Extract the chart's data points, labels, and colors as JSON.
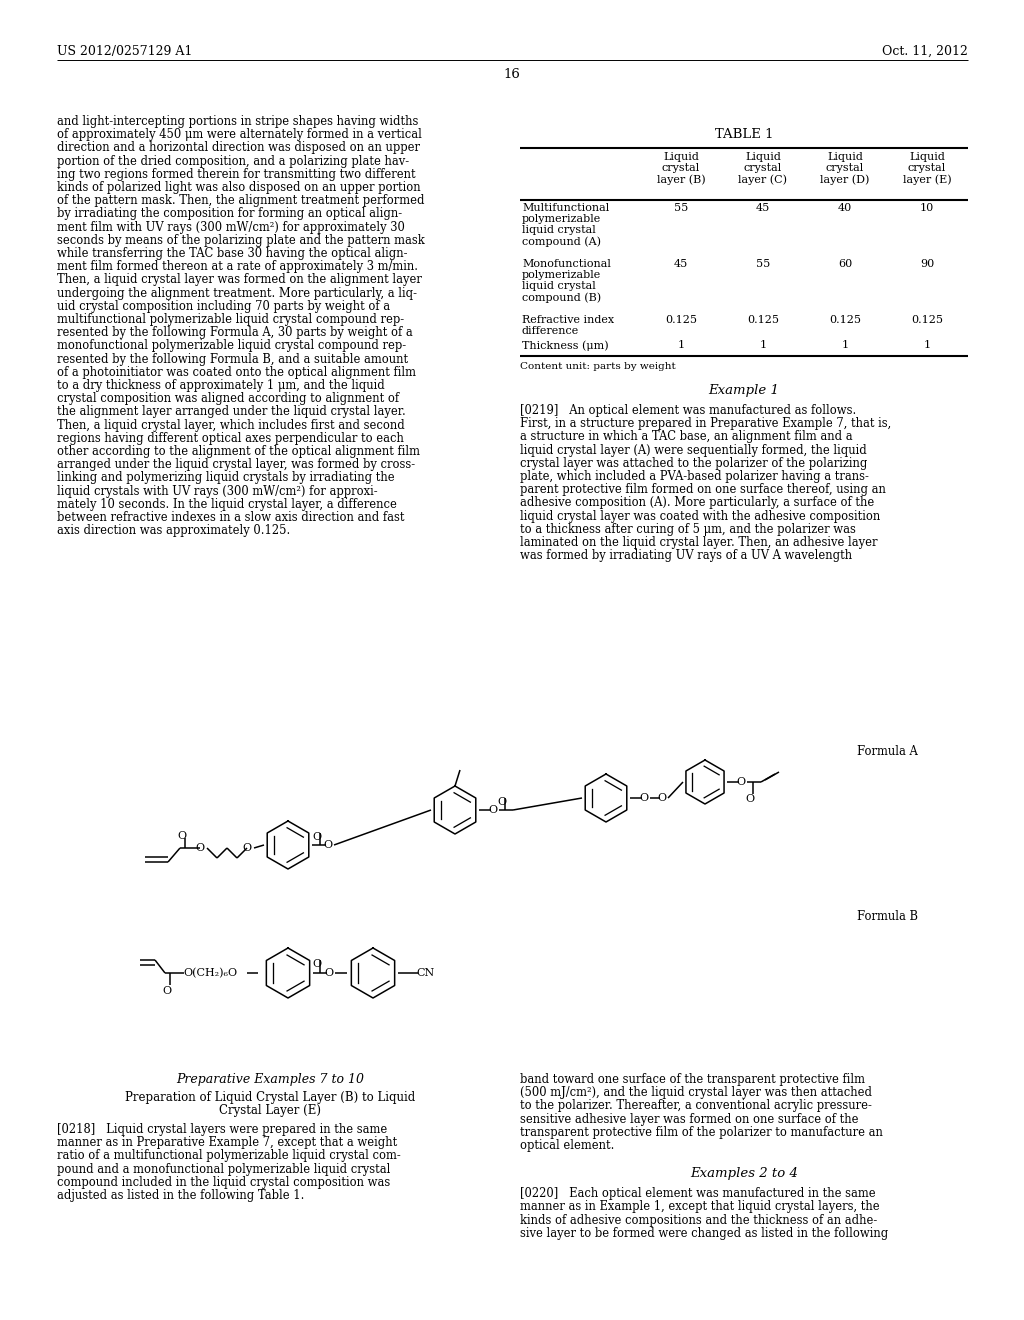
{
  "page_number": "16",
  "patent_number": "US 2012/0257129 A1",
  "patent_date": "Oct. 11, 2012",
  "background_color": "#ffffff",
  "left_col_lines": [
    "and light-intercepting portions in stripe shapes having widths",
    "of approximately 450 μm were alternately formed in a vertical",
    "direction and a horizontal direction was disposed on an upper",
    "portion of the dried composition, and a polarizing plate hav-",
    "ing two regions formed therein for transmitting two different",
    "kinds of polarized light was also disposed on an upper portion",
    "of the pattern mask. Then, the alignment treatment performed",
    "by irradiating the composition for forming an optical align-",
    "ment film with UV rays (300 mW/cm²) for approximately 30",
    "seconds by means of the polarizing plate and the pattern mask",
    "while transferring the TAC base 30 having the optical align-",
    "ment film formed thereon at a rate of approximately 3 m/min.",
    "Then, a liquid crystal layer was formed on the alignment layer",
    "undergoing the alignment treatment. More particularly, a liq-",
    "uid crystal composition including 70 parts by weight of a",
    "multifunctional polymerizable liquid crystal compound rep-",
    "resented by the following Formula A, 30 parts by weight of a",
    "monofunctional polymerizable liquid crystal compound rep-",
    "resented by the following Formula B, and a suitable amount",
    "of a photoinitiator was coated onto the optical alignment film",
    "to a dry thickness of approximately 1 μm, and the liquid",
    "crystal composition was aligned according to alignment of",
    "the alignment layer arranged under the liquid crystal layer.",
    "Then, a liquid crystal layer, which includes first and second",
    "regions having different optical axes perpendicular to each",
    "other according to the alignment of the optical alignment film",
    "arranged under the liquid crystal layer, was formed by cross-",
    "linking and polymerizing liquid crystals by irradiating the",
    "liquid crystals with UV rays (300 mW/cm²) for approxi-",
    "mately 10 seconds. In the liquid crystal layer, a difference",
    "between refractive indexes in a slow axis direction and fast",
    "axis direction was approximately 0.125."
  ],
  "prep_title": "Preparative Examples 7 to 10",
  "prep_subtitle1": "Preparation of Liquid Crystal Layer (B) to Liquid",
  "prep_subtitle2": "Crystal Layer (E)",
  "prep_lines": [
    "[0218]   Liquid crystal layers were prepared in the same",
    "manner as in Preparative Example 7, except that a weight",
    "ratio of a multifunctional polymerizable liquid crystal com-",
    "pound and a monofunctional polymerizable liquid crystal",
    "compound included in the liquid crystal composition was",
    "adjusted as listed in the following Table 1."
  ],
  "table_title": "TABLE 1",
  "table_col_headers": [
    "Liquid\ncrystal\nlayer (B)",
    "Liquid\ncrystal\nlayer (C)",
    "Liquid\ncrystal\nlayer (D)",
    "Liquid\ncrystal\nlayer (E)"
  ],
  "table_row_labels": [
    "Multifunctional\npolymerizable\nliquid crystal\ncompound (A)",
    "Monofunctional\npolymerizable\nliquid crystal\ncompound (B)",
    "Refractive index\ndifference",
    "Thickness (μm)"
  ],
  "table_data": [
    [
      "55",
      "45",
      "40",
      "10"
    ],
    [
      "45",
      "55",
      "60",
      "90"
    ],
    [
      "0.125",
      "0.125",
      "0.125",
      "0.125"
    ],
    [
      "1",
      "1",
      "1",
      "1"
    ]
  ],
  "table_footnote": "Content unit: parts by weight",
  "example1_title": "Example 1",
  "example1_lines": [
    "[0219]   An optical element was manufactured as follows.",
    "First, in a structure prepared in Preparative Example 7, that is,",
    "a structure in which a TAC base, an alignment film and a",
    "liquid crystal layer (A) were sequentially formed, the liquid",
    "crystal layer was attached to the polarizer of the polarizing",
    "plate, which included a PVA-based polarizer having a trans-",
    "parent protective film formed on one surface thereof, using an",
    "adhesive composition (A). More particularly, a surface of the",
    "liquid crystal layer was coated with the adhesive composition",
    "to a thickness after curing of 5 μm, and the polarizer was",
    "laminated on the liquid crystal layer. Then, an adhesive layer",
    "was formed by irradiating UV rays of a UV A wavelength"
  ],
  "bottom_right_lines": [
    "band toward one surface of the transparent protective film",
    "(500 mJ/cm²), and the liquid crystal layer was then attached",
    "to the polarizer. Thereafter, a conventional acrylic pressure-",
    "sensitive adhesive layer was formed on one surface of the",
    "transparent protective film of the polarizer to manufacture an",
    "optical element."
  ],
  "example24_title": "Examples 2 to 4",
  "example24_lines": [
    "[0220]   Each optical element was manufactured in the same",
    "manner as in Example 1, except that liquid crystal layers, the",
    "kinds of adhesive compositions and the thickness of an adhe-",
    "sive layer to be formed were changed as listed in the following"
  ],
  "formula_a_label": "Formula A",
  "formula_b_label": "Formula B"
}
